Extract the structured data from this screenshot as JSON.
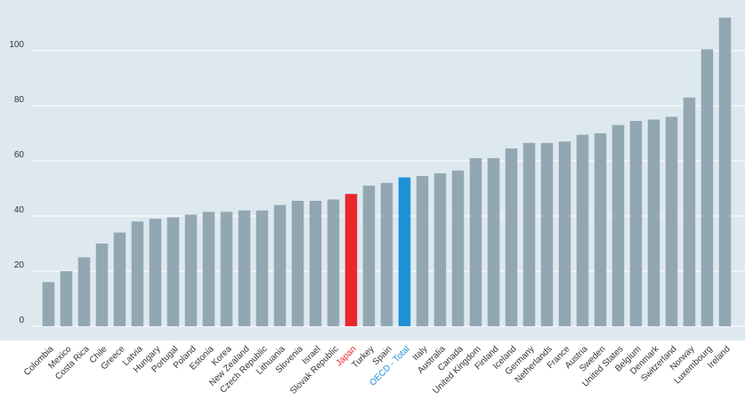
{
  "chart_data": {
    "type": "bar",
    "title": "",
    "xlabel": "",
    "ylabel": "",
    "ylim": [
      0,
      110
    ],
    "yticks": [
      0,
      20,
      40,
      60,
      80,
      100
    ],
    "grid": true,
    "categories": [
      "Colombia",
      "Mexico",
      "Costa Rica",
      "Chile",
      "Greece",
      "Latvia",
      "Hungary",
      "Portugal",
      "Poland",
      "Estonia",
      "Korea",
      "New Zealand",
      "Czech Republic",
      "Lithuania",
      "Slovenia",
      "Israel",
      "Slovak Republic",
      "Japan",
      "Turkey",
      "Spain",
      "OECD - Total",
      "Italy",
      "Australia",
      "Canada",
      "United Kingdom",
      "Finland",
      "Iceland",
      "Germany",
      "Netherlands",
      "France",
      "Austria",
      "Sweden",
      "United States",
      "Belgium",
      "Denmark",
      "Switzerland",
      "Norway",
      "Luxembourg",
      "Ireland"
    ],
    "values": [
      16,
      20,
      25,
      30,
      34,
      38,
      39,
      39.5,
      40.5,
      41.5,
      41.5,
      42,
      42,
      44,
      45.5,
      45.5,
      46,
      48,
      51,
      52,
      54,
      54.5,
      55.5,
      56.5,
      61,
      61,
      64.5,
      66.5,
      66.5,
      67,
      69.5,
      70,
      73,
      74.5,
      75,
      76,
      83,
      100.5,
      112
    ],
    "highlight": {
      "Japan": "#e8282b",
      "OECD - Total": "#1c91d6"
    },
    "colors": {
      "bar": "#93a7b3",
      "background": "#dde8ef",
      "grid": "#ffffff",
      "tick_text": "#333333"
    }
  }
}
